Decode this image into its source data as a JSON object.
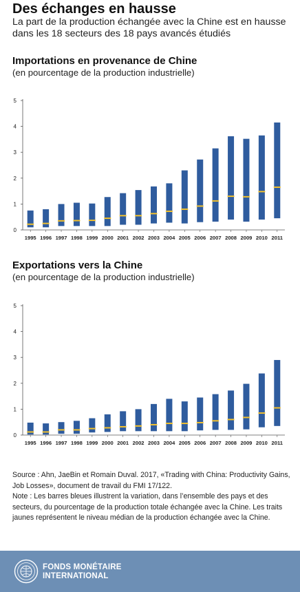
{
  "header": {
    "title": "Des échanges en hausse",
    "subtitle": "La part de la production échangée avec la Chine est en hausse dans les 18 secteurs des 18 pays avancés étudiés"
  },
  "charts": [
    {
      "title": "Importations en provenance de Chine",
      "subtitle": "(en pourcentage de la production industrielle)"
    },
    {
      "title": "Exportations vers la Chine",
      "subtitle": "(en pourcentage de la production industrielle)"
    }
  ],
  "chart_data": [
    {
      "type": "bar",
      "title": "Importations en provenance de Chine",
      "subtitle": "(en pourcentage de la production industrielle)",
      "categories": [
        "1995",
        "1996",
        "1997",
        "1998",
        "1999",
        "2000",
        "2001",
        "2002",
        "2003",
        "2004",
        "2005",
        "2006",
        "2007",
        "2008",
        "2009",
        "2010",
        "2011"
      ],
      "series": [
        {
          "name": "low",
          "values": [
            0.1,
            0.1,
            0.15,
            0.15,
            0.15,
            0.15,
            0.2,
            0.2,
            0.25,
            0.28,
            0.25,
            0.3,
            0.32,
            0.4,
            0.32,
            0.4,
            0.45
          ]
        },
        {
          "name": "high",
          "values": [
            0.75,
            0.8,
            1.0,
            1.05,
            1.02,
            1.27,
            1.42,
            1.54,
            1.68,
            1.8,
            2.3,
            2.72,
            3.15,
            3.62,
            3.52,
            3.65,
            4.15
          ]
        },
        {
          "name": "median",
          "values": [
            0.22,
            0.25,
            0.35,
            0.36,
            0.37,
            0.45,
            0.55,
            0.55,
            0.63,
            0.72,
            0.8,
            0.92,
            1.12,
            1.3,
            1.28,
            1.48,
            1.65
          ]
        }
      ],
      "yticks": [
        "0",
        "1",
        "2",
        "3",
        "4",
        "5"
      ],
      "ylim": [
        0,
        5
      ],
      "colors": {
        "bar": "#2f5c9e",
        "median": "#f2c12e"
      }
    },
    {
      "type": "bar",
      "title": "Exportations vers la Chine",
      "subtitle": "(en pourcentage de la production industrielle)",
      "categories": [
        "1995",
        "1996",
        "1997",
        "1998",
        "1999",
        "2000",
        "2001",
        "2002",
        "2003",
        "2004",
        "2005",
        "2006",
        "2007",
        "2008",
        "2009",
        "2010",
        "2011"
      ],
      "series": [
        {
          "name": "low",
          "values": [
            0.02,
            0.02,
            0.05,
            0.05,
            0.1,
            0.12,
            0.15,
            0.15,
            0.15,
            0.15,
            0.15,
            0.18,
            0.2,
            0.2,
            0.22,
            0.3,
            0.35
          ]
        },
        {
          "name": "high",
          "values": [
            0.48,
            0.45,
            0.5,
            0.55,
            0.65,
            0.8,
            0.92,
            1.0,
            1.2,
            1.4,
            1.3,
            1.45,
            1.58,
            1.72,
            1.98,
            2.38,
            2.9
          ]
        },
        {
          "name": "median",
          "values": [
            0.12,
            0.12,
            0.2,
            0.2,
            0.25,
            0.28,
            0.32,
            0.35,
            0.4,
            0.45,
            0.45,
            0.48,
            0.55,
            0.6,
            0.68,
            0.85,
            1.05
          ]
        }
      ],
      "yticks": [
        "0",
        "1",
        "2",
        "3",
        "4",
        "5"
      ],
      "ylim": [
        0,
        5
      ],
      "colors": {
        "bar": "#2f5c9e",
        "median": "#f2c12e"
      }
    }
  ],
  "source": {
    "line1": "Source : Ahn, JaeBin et Romain Duval. 2017, «Trading with China: Productivity Gains, Job Losses», document de travail du FMI 17/122.",
    "line2": "Note : Les barres bleues illustrent la variation, dans l’ensemble des pays et des secteurs, du pourcentage de la production totale échangée avec la Chine. Les traits jaunes représentent le niveau médian de la production échangée avec la Chine."
  },
  "footer": {
    "line1": "FONDS MONÉTAIRE",
    "line2": "INTERNATIONAL",
    "color": "#6d8fb5"
  }
}
